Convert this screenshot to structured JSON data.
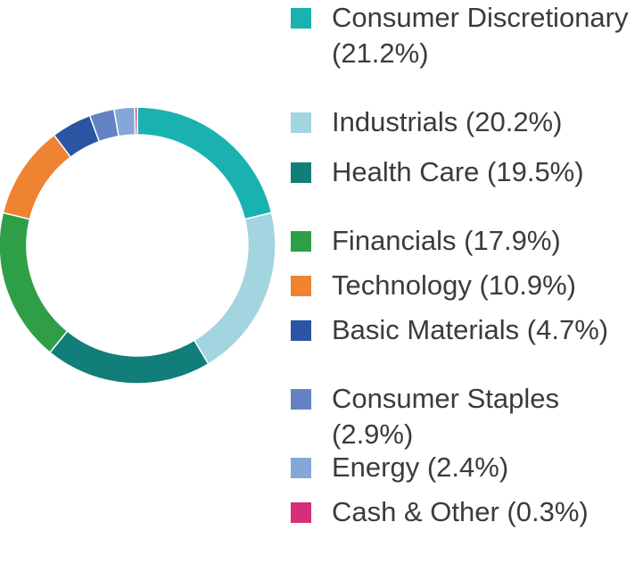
{
  "chart_data": {
    "type": "pie",
    "style": "donut",
    "start_angle": "top",
    "direction": "clockwise",
    "legend": "right",
    "slices": [
      {
        "label": "Consumer Discretionary (21.2%)",
        "value": 21.2,
        "color": "#19b2b0"
      },
      {
        "label": "Industrials (20.2%)",
        "value": 20.2,
        "color": "#a2d5df"
      },
      {
        "label": "Health Care (19.5%)",
        "value": 19.5,
        "color": "#127e79"
      },
      {
        "label": "Financials (17.9%)",
        "value": 17.9,
        "color": "#2e9f47"
      },
      {
        "label": "Technology (10.9%)",
        "value": 10.9,
        "color": "#ef8332"
      },
      {
        "label": "Basic Materials (4.7%)",
        "value": 4.7,
        "color": "#2b55a3"
      },
      {
        "label": "Consumer Staples (2.9%)",
        "value": 2.9,
        "color": "#6583c4"
      },
      {
        "label": "Energy (2.4%)",
        "value": 2.4,
        "color": "#84a7d8"
      },
      {
        "label": "Cash & Other (0.3%)",
        "value": 0.3,
        "color": "#d62e7a"
      }
    ]
  }
}
